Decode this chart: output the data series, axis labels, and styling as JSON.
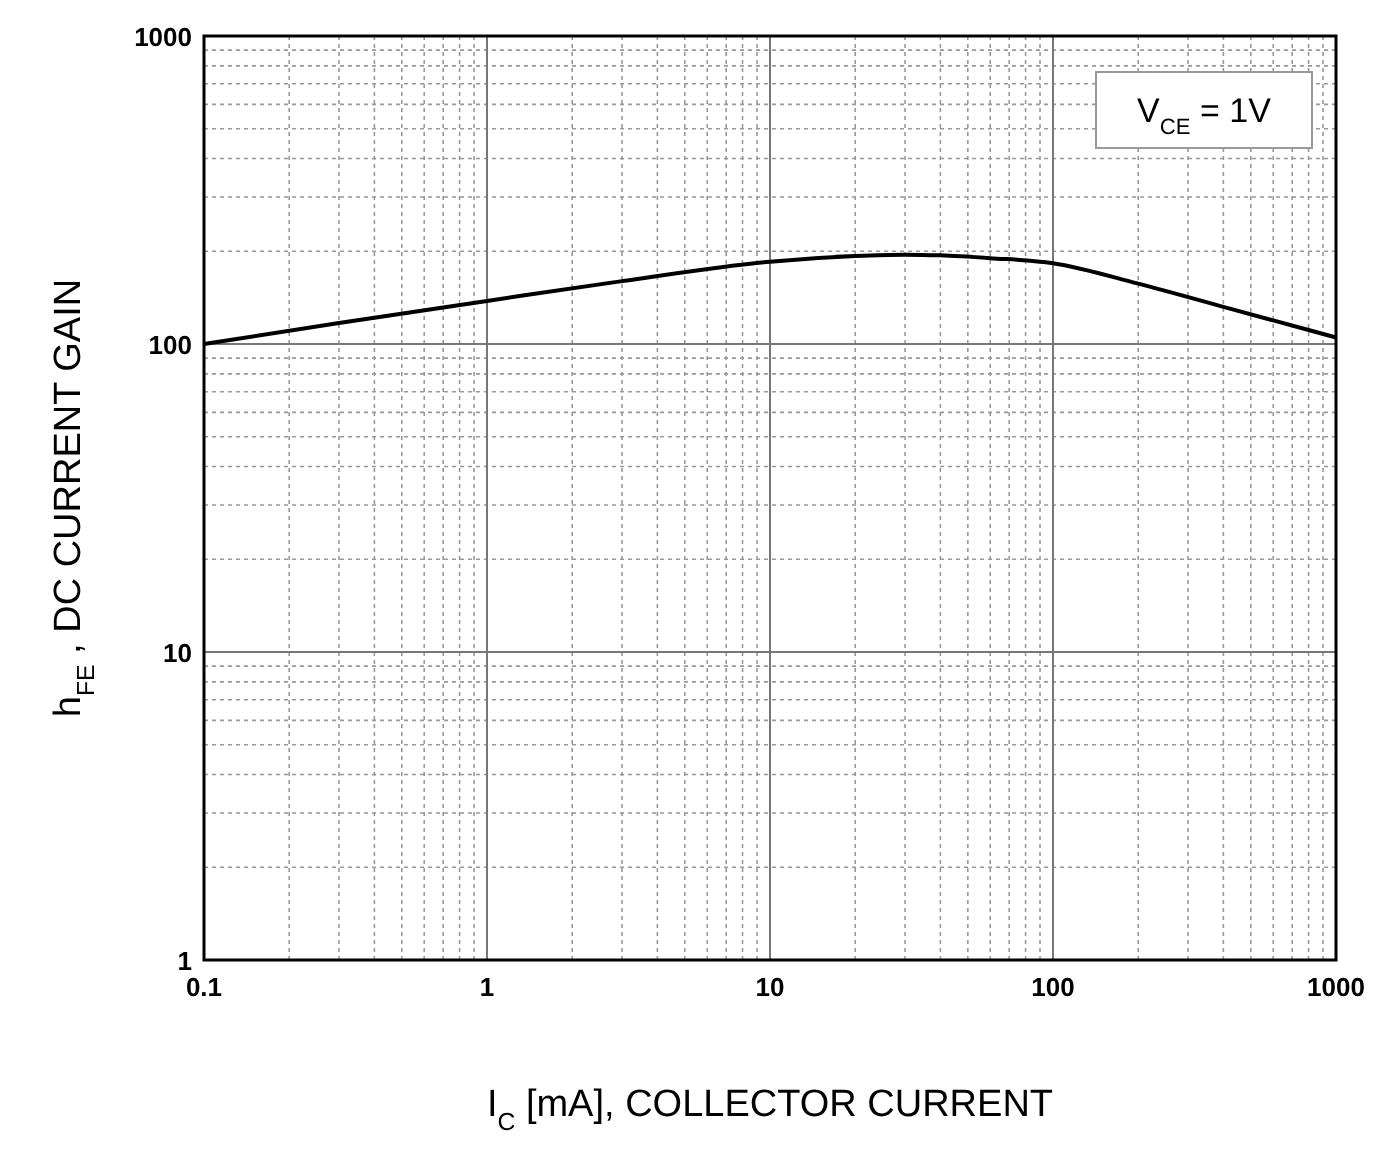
{
  "chart_data": {
    "type": "line",
    "xlabel": "I$_{C}$[mA], COLLECTOR CURRENT",
    "ylabel": "h$_{FE}$, DC CURRENT GAIN",
    "annotations": [
      "V$_{CE}$ = 1V"
    ],
    "x": [
      0.1,
      0.3,
      1,
      3,
      10,
      20,
      30,
      40,
      60,
      100,
      200,
      400,
      1000
    ],
    "series": [
      {
        "color": "#000000",
        "values": [
          100,
          117,
          138,
          160,
          185,
          193,
          195,
          194,
          190,
          183,
          157,
          132,
          105
        ]
      }
    ],
    "log": "xy",
    "grid": true,
    "marker": "none",
    "line_style": "solid",
    "xlim": [
      0.1,
      1000
    ],
    "ylim": [
      1,
      1000
    ],
    "xticks": [
      0.1,
      1,
      10,
      100,
      1000
    ],
    "yticks": [
      1,
      10,
      100,
      1000
    ]
  }
}
